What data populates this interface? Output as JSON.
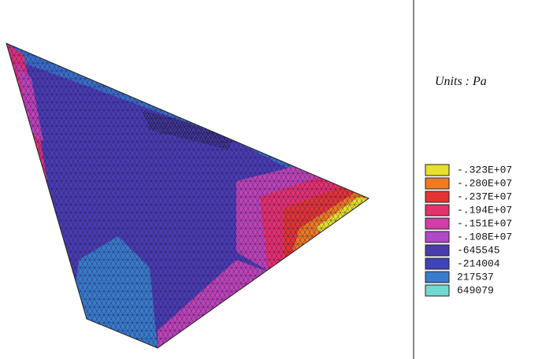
{
  "units": "Units : Pa",
  "legend": [
    {
      "label": "-.323E+07",
      "color": "#e8e02a"
    },
    {
      "label": "-.280E+07",
      "color": "#f07a22"
    },
    {
      "label": "-.237E+07",
      "color": "#e63434"
    },
    {
      "label": "-.194E+07",
      "color": "#e8306c"
    },
    {
      "label": "-.151E+07",
      "color": "#d23ea8"
    },
    {
      "label": "-.108E+07",
      "color": "#b048c8"
    },
    {
      "label": "-645545",
      "color": "#4b3cae"
    },
    {
      "label": "-214004",
      "color": "#3f44b8"
    },
    {
      "label": "217537",
      "color": "#3a7ccc"
    },
    {
      "label": "649079",
      "color": "#70dad2"
    }
  ]
}
